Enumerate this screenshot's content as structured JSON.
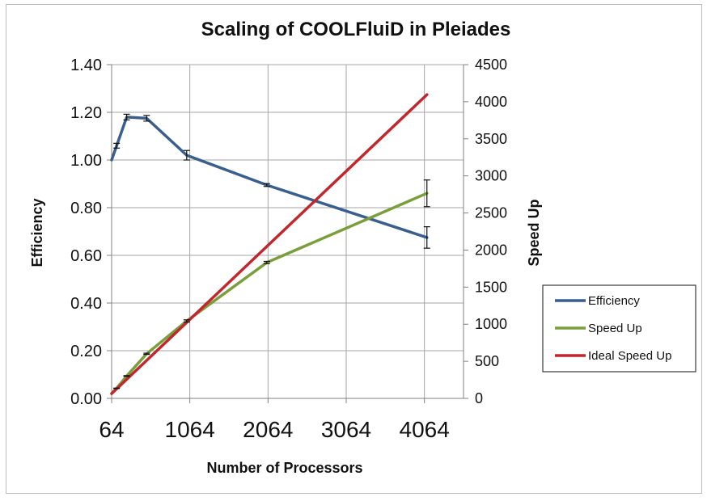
{
  "chart_data": {
    "type": "line",
    "title": "Scaling of COOLFluiD in Pleiades",
    "xlabel": "Number of Processors",
    "ylabel": "Efficiency",
    "y2label": "Speed Up",
    "xlim": [
      64,
      4564
    ],
    "ylim": [
      0,
      1.4
    ],
    "y2lim": [
      0,
      4500
    ],
    "xticks": [
      "64",
      "1064",
      "2064",
      "3064",
      "4064"
    ],
    "yticks": [
      "0.00",
      "0.20",
      "0.40",
      "0.60",
      "0.80",
      "1.00",
      "1.20",
      "1.40"
    ],
    "y2ticks": [
      "0",
      "500",
      "1000",
      "1500",
      "2000",
      "2500",
      "3000",
      "3500",
      "4000",
      "4500"
    ],
    "grid": true,
    "legend_position": "right",
    "series": [
      {
        "name": "Efficiency",
        "axis": "left",
        "color": "#3A5F8C",
        "x": [
          64,
          128,
          256,
          512,
          1024,
          2048,
          4096
        ],
        "y": [
          1.0,
          1.06,
          1.18,
          1.175,
          1.02,
          0.895,
          0.675
        ],
        "err": [
          0,
          0.01,
          0.012,
          0.012,
          0.02,
          0.006,
          0.045
        ]
      },
      {
        "name": "Speed Up",
        "axis": "right",
        "color": "#7A9E3C",
        "x": [
          64,
          128,
          256,
          512,
          1024,
          2048,
          4096
        ],
        "y": [
          64,
          136,
          302,
          601,
          1044,
          1832,
          2765
        ],
        "err": [
          0,
          3,
          5,
          8,
          15,
          15,
          180
        ]
      },
      {
        "name": "Ideal Speed Up",
        "axis": "right",
        "color": "#C0282D",
        "x": [
          64,
          4096
        ],
        "y": [
          64,
          4096
        ],
        "err": null
      }
    ]
  }
}
